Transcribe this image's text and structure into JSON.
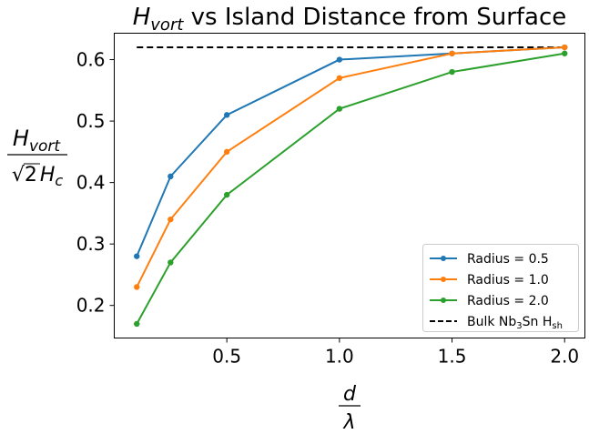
{
  "chart_data": {
    "type": "line",
    "title": {
      "main": "H",
      "sub": "vort",
      "rest": " vs Island Distance from Surface"
    },
    "xlabel": {
      "num": "d",
      "den": "λ"
    },
    "ylabel": {
      "num_main": "H",
      "num_sub": "vort",
      "den_root": "√",
      "den_two": "2",
      "den_main": "H",
      "den_sub": "c"
    },
    "xlim": [
      0.0,
      2.09
    ],
    "ylim": [
      0.147,
      0.643
    ],
    "xticks": [
      0.5,
      1.0,
      1.5,
      2.0
    ],
    "xtick_labels": [
      "0.5",
      "1.0",
      "1.5",
      "2.0"
    ],
    "yticks": [
      0.2,
      0.3,
      0.4,
      0.5,
      0.6
    ],
    "ytick_labels": [
      "0.2",
      "0.3",
      "0.4",
      "0.5",
      "0.6"
    ],
    "x": [
      0.1,
      0.25,
      0.5,
      1.0,
      1.5,
      2.0
    ],
    "series": [
      {
        "name": "Radius = 0.5",
        "color": "#1f77b4",
        "values": [
          0.28,
          0.41,
          0.51,
          0.6,
          0.61,
          0.62
        ]
      },
      {
        "name": "Radius = 1.0",
        "color": "#ff7f0e",
        "values": [
          0.23,
          0.34,
          0.45,
          0.57,
          0.61,
          0.62
        ]
      },
      {
        "name": "Radius = 2.0",
        "color": "#2ca02c",
        "values": [
          0.17,
          0.27,
          0.38,
          0.52,
          0.58,
          0.61
        ]
      }
    ],
    "reference_line": {
      "label_pre": "Bulk Nb",
      "label_sub1": "3",
      "label_mid": "Sn H",
      "label_sub2": "sh",
      "color": "#000000",
      "style": "dashed",
      "y": 0.62,
      "x": [
        0.1,
        2.0
      ]
    },
    "legend": {
      "placement": "lower-right"
    },
    "grid": false
  }
}
